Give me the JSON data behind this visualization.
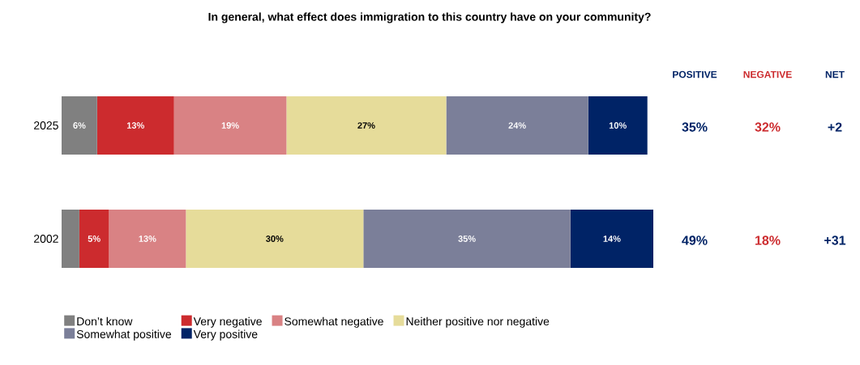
{
  "chart_data": {
    "type": "bar",
    "title": "In general, what effect does immigration to this country have on your community?",
    "orientation": "horizontal",
    "stacked": true,
    "categories": [
      "2025",
      "2002"
    ],
    "xlim": [
      0,
      100
    ],
    "tick_labels": "y",
    "legend": "bottom",
    "series": [
      {
        "name": "Don’t know",
        "color": "#808080",
        "values": [
          6,
          3
        ],
        "value_labels": [
          "6%",
          null
        ]
      },
      {
        "name": "Very negative",
        "color": "#cc2b2e",
        "values": [
          13,
          5
        ],
        "value_labels": [
          "13%",
          "5%"
        ]
      },
      {
        "name": "Somewhat negative",
        "color": "#d98284",
        "values": [
          19,
          13
        ],
        "value_labels": [
          "19%",
          "13%"
        ]
      },
      {
        "name": "Neither positive nor negative",
        "color": "#e6dc9a",
        "values": [
          27,
          30
        ],
        "value_labels": [
          "27%",
          "30%"
        ]
      },
      {
        "name": "Somewhat positive",
        "color": "#7b7f99",
        "values": [
          24,
          35
        ],
        "value_labels": [
          "24%",
          "35%"
        ]
      },
      {
        "name": "Very positive",
        "color": "#002366",
        "values": [
          10,
          14
        ],
        "value_labels": [
          "10%",
          "14%"
        ]
      }
    ],
    "annotations": [
      "POSITIVE",
      "NEGATIVE",
      "NET",
      "35%",
      "32%",
      "+2",
      "49%",
      "18%",
      "+31"
    ]
  }
}
